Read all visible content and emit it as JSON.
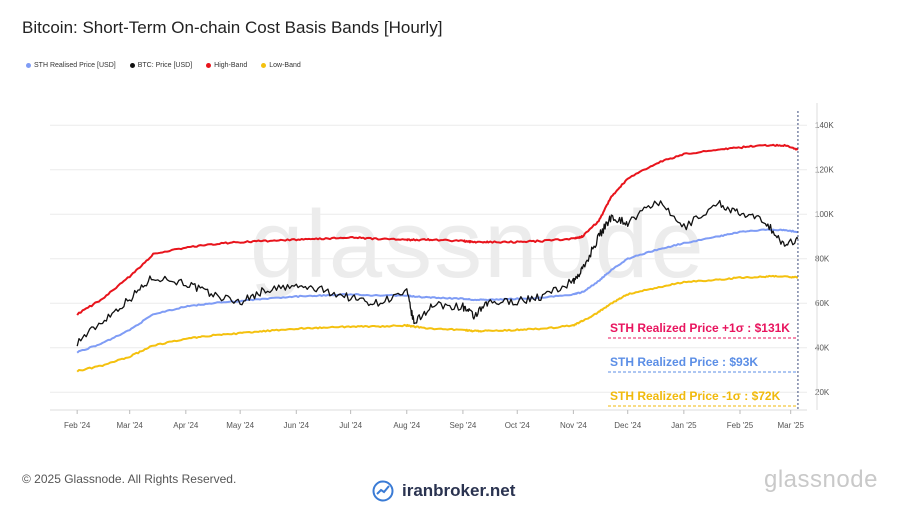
{
  "title": "Bitcoin: Short-Term On-chain Cost Basis Bands [Hourly]",
  "legend": [
    {
      "label": "STH Realised Price [USD]",
      "color": "#7f9cf5"
    },
    {
      "label": "BTC: Price [USD]",
      "color": "#111111"
    },
    {
      "label": "High-Band",
      "color": "#e8141c"
    },
    {
      "label": "Low-Band",
      "color": "#f4c10f"
    }
  ],
  "watermark": "glassnode",
  "footer": {
    "copyright": "© 2025 Glassnode. All Rights Reserved.",
    "brand": "iranbroker.net",
    "logo": "glassnode"
  },
  "annotations": [
    {
      "text": "STH Realized Price +1σ : $131K",
      "color": "#e8145e"
    },
    {
      "text": "STH Realized Price  : $93K",
      "color": "#5b8ee6"
    },
    {
      "text": "STH Realized Price -1σ : $72K",
      "color": "#f0b90b"
    }
  ],
  "chart_data": {
    "type": "line",
    "title": "Bitcoin: Short-Term On-chain Cost Basis Bands [Hourly]",
    "x_ticks": [
      "Feb '24",
      "Mar '24",
      "Apr '24",
      "May '24",
      "Jun '24",
      "Jul '24",
      "Aug '24",
      "Sep '24",
      "Oct '24",
      "Nov '24",
      "Dec '24",
      "Jan '25",
      "Feb '25",
      "Mar '25"
    ],
    "y_ticks": [
      "20K",
      "40K",
      "60K",
      "80K",
      "100K",
      "120K",
      "140K"
    ],
    "ylim": [
      12000,
      150000
    ],
    "grid": true,
    "legend_position": "top-left",
    "x": [
      "2024-02-01",
      "2024-02-15",
      "2024-03-01",
      "2024-03-14",
      "2024-04-01",
      "2024-04-15",
      "2024-05-01",
      "2024-05-15",
      "2024-06-01",
      "2024-06-15",
      "2024-07-01",
      "2024-07-15",
      "2024-08-01",
      "2024-08-05",
      "2024-08-15",
      "2024-09-01",
      "2024-09-07",
      "2024-09-15",
      "2024-10-01",
      "2024-10-15",
      "2024-11-01",
      "2024-11-06",
      "2024-11-15",
      "2024-11-22",
      "2024-12-01",
      "2024-12-17",
      "2025-01-01",
      "2025-01-20",
      "2025-02-01",
      "2025-02-15",
      "2025-02-25",
      "2025-03-05"
    ],
    "series": [
      {
        "name": "BTC: Price [USD]",
        "color": "#111111",
        "values": [
          42500,
          52000,
          62000,
          72000,
          69000,
          64000,
          60500,
          66000,
          67500,
          66000,
          62500,
          60000,
          65000,
          51000,
          59000,
          58500,
          54000,
          60000,
          61000,
          63000,
          70000,
          75000,
          90000,
          99000,
          96000,
          106000,
          94000,
          105000,
          100000,
          97000,
          86000,
          89000
        ]
      },
      {
        "name": "STH Realised Price [USD]",
        "color": "#7f9cf5",
        "values": [
          38000,
          42000,
          48000,
          55000,
          58500,
          60000,
          61000,
          62000,
          63000,
          63500,
          64000,
          63500,
          63500,
          63000,
          62500,
          62000,
          61500,
          61500,
          62000,
          62500,
          64000,
          65000,
          70000,
          75000,
          80000,
          84000,
          87000,
          90000,
          92000,
          93000,
          93000,
          92000
        ]
      },
      {
        "name": "High-Band",
        "color": "#e8141c",
        "values": [
          55000,
          62000,
          72000,
          82000,
          85000,
          86500,
          87500,
          88000,
          88500,
          89000,
          89500,
          89000,
          88500,
          88500,
          88500,
          88000,
          87500,
          87500,
          87500,
          88000,
          89000,
          90000,
          97000,
          108000,
          116000,
          123000,
          127000,
          129000,
          130000,
          131000,
          131000,
          129000
        ]
      },
      {
        "name": "Low-Band",
        "color": "#f4c10f",
        "values": [
          29500,
          32000,
          36000,
          41000,
          44000,
          45500,
          46500,
          47500,
          48500,
          49000,
          49500,
          49500,
          50000,
          49500,
          48500,
          48000,
          47500,
          47500,
          48000,
          48500,
          50000,
          52000,
          56000,
          60000,
          64000,
          67000,
          69500,
          70500,
          71500,
          72000,
          72000,
          71500
        ]
      }
    ]
  }
}
